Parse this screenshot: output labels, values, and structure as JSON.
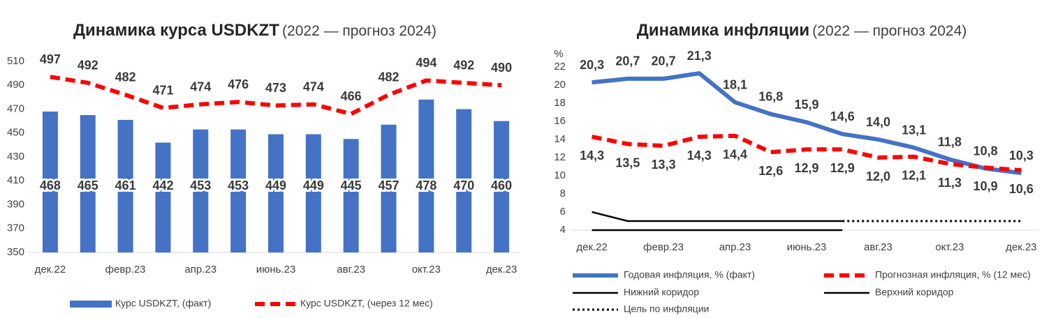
{
  "chart_data": [
    {
      "type": "combo",
      "title": "Динамика курса USDKZT",
      "subtitle": "(2022 — прогноз 2024)",
      "categories": [
        "дек.22",
        null,
        "февр.23",
        null,
        "апр.23",
        null,
        "июнь.23",
        null,
        "авг.23",
        null,
        "окт.23",
        null,
        "дек.23"
      ],
      "ylim": [
        350,
        510
      ],
      "yticks": [
        350,
        370,
        390,
        410,
        430,
        450,
        470,
        490,
        510
      ],
      "series": [
        {
          "name": "Курс USDKZT, (факт)",
          "type": "bar",
          "color": "#4472c4",
          "values": [
            468,
            465,
            461,
            442,
            453,
            453,
            449,
            449,
            445,
            457,
            478,
            470,
            460
          ]
        },
        {
          "name": "Курс USDKZT, (через 12 мес)",
          "type": "line",
          "style": "dashed",
          "color": "#ff0000",
          "values": [
            497,
            492,
            482,
            471,
            474,
            476,
            473,
            474,
            466,
            482,
            494,
            492,
            490
          ]
        }
      ]
    },
    {
      "type": "line",
      "title": "Динамика инфляции",
      "subtitle": "(2022 — прогноз 2024)",
      "y_label": "%",
      "categories": [
        "дек.22",
        null,
        "февр.23",
        null,
        "апр.23",
        null,
        "июнь.23",
        null,
        "авг.23",
        null,
        "окт.23",
        null,
        "дек.23"
      ],
      "ylim": [
        4,
        22
      ],
      "yticks": [
        4,
        6,
        8,
        10,
        12,
        14,
        16,
        18,
        20,
        22
      ],
      "series": [
        {
          "name": "Годовая инфляция, % (факт)",
          "style": "solid",
          "color": "#4472c4",
          "values": [
            20.3,
            20.7,
            20.7,
            21.3,
            18.1,
            16.8,
            15.9,
            14.6,
            14.0,
            13.1,
            11.8,
            10.8,
            10.3
          ],
          "value_labels": [
            "20,3",
            "20,7",
            "20,7",
            "21,3",
            "18,1",
            "16,8",
            "15,9",
            "14,6",
            "14,0",
            "13,1",
            "11,8",
            "10,8",
            "10,3"
          ]
        },
        {
          "name": "Прогнозная инфляция, % (12 мес)",
          "style": "dashed",
          "color": "#ff0000",
          "values": [
            14.3,
            13.5,
            13.3,
            14.3,
            14.4,
            12.6,
            12.9,
            12.9,
            12.0,
            12.1,
            11.3,
            10.9,
            10.6
          ],
          "value_labels": [
            "14,3",
            "13,5",
            "13,3",
            "14,3",
            "14,4",
            "12,6",
            "12,9",
            "12,9",
            "12,0",
            "12,1",
            "11,3",
            "10,9",
            "10,6"
          ]
        },
        {
          "name": "Нижний коридор",
          "style": "thin",
          "color": "#000000",
          "values": [
            4,
            4,
            4,
            4,
            4,
            4,
            4,
            4,
            null,
            null,
            null,
            null,
            null
          ]
        },
        {
          "name": "Верхний коридор",
          "style": "thin",
          "color": "#000000",
          "values": [
            6,
            5,
            5,
            5,
            5,
            5,
            5,
            5,
            null,
            null,
            null,
            null,
            null
          ]
        },
        {
          "name": "Цель по инфляции",
          "style": "dotted",
          "color": "#000000",
          "values": [
            null,
            null,
            null,
            null,
            null,
            null,
            null,
            5,
            5,
            5,
            5,
            5,
            5
          ]
        }
      ]
    }
  ]
}
